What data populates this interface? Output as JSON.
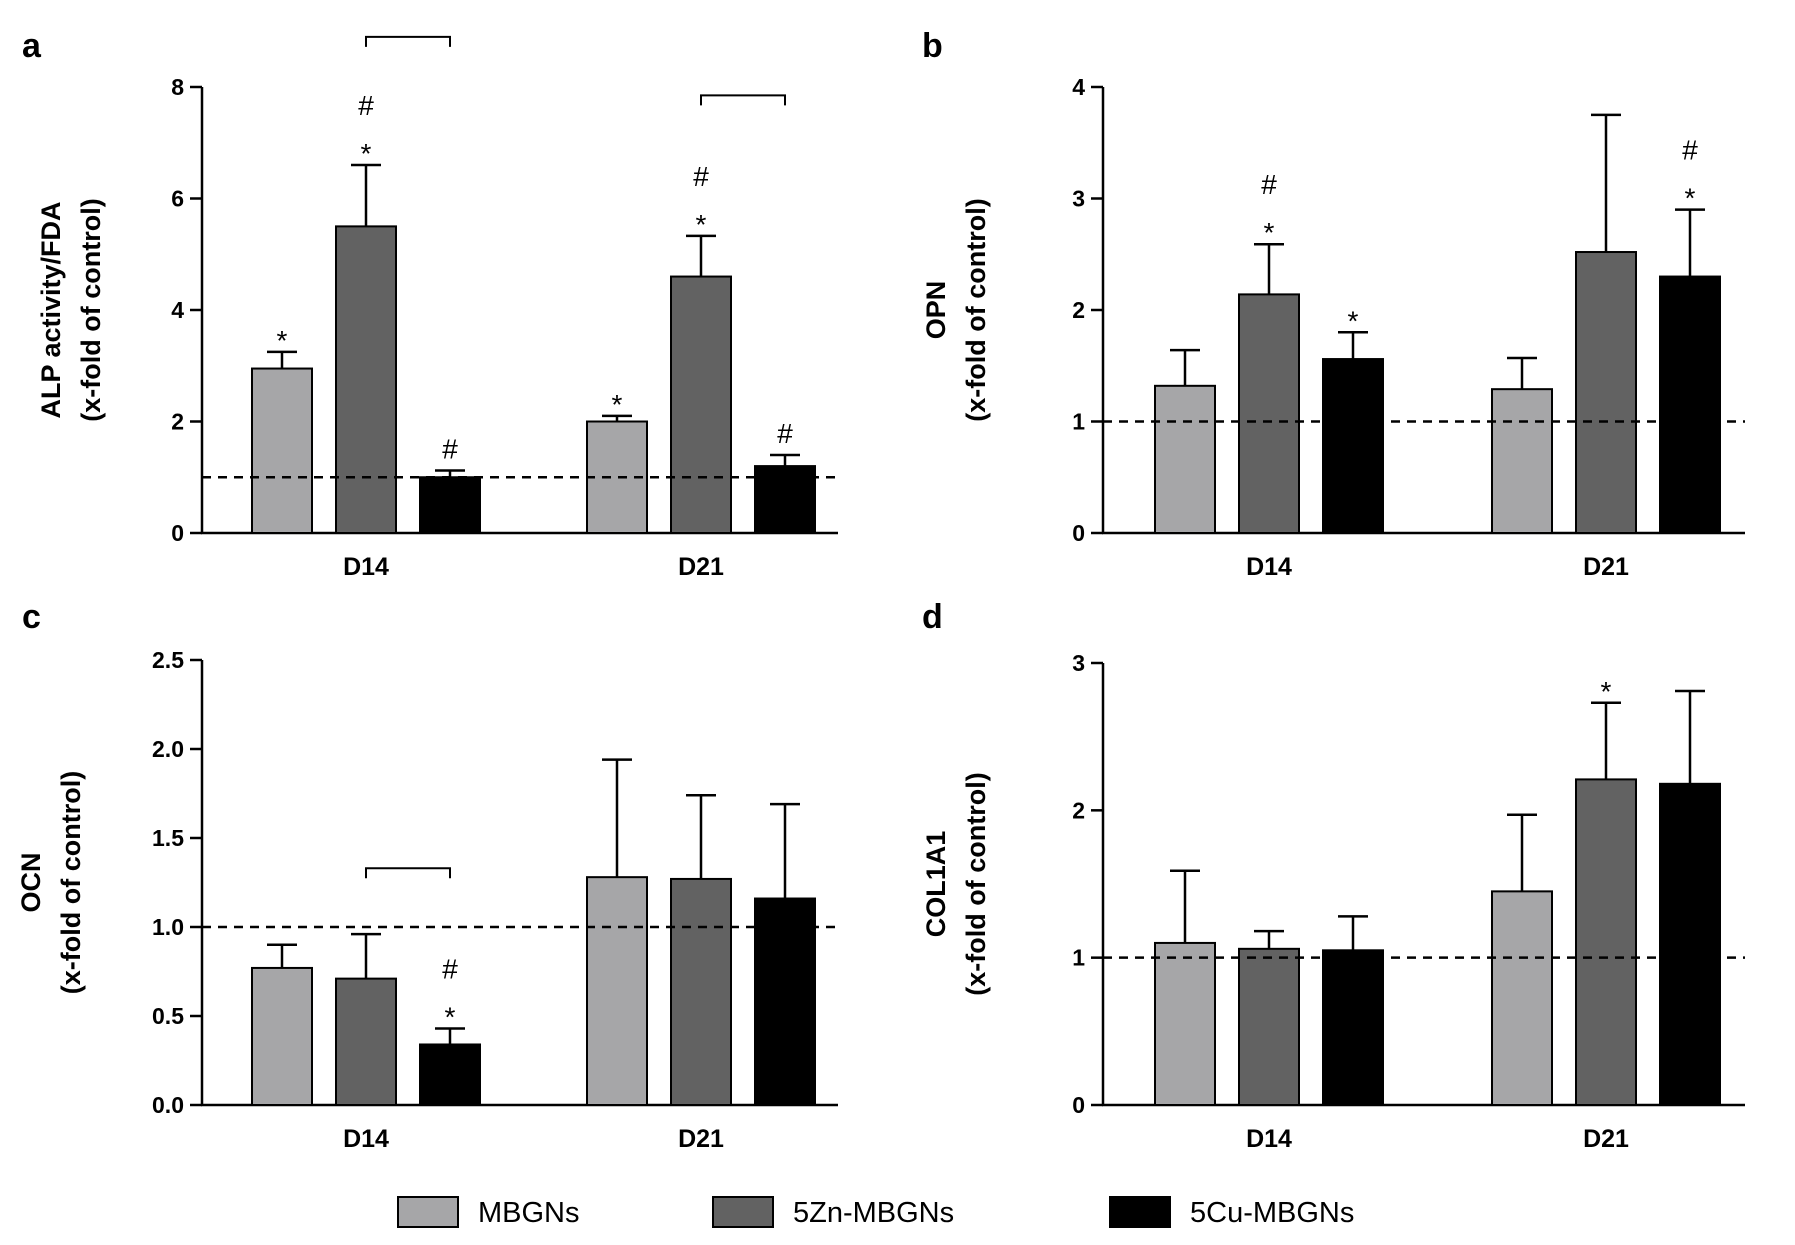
{
  "series_names": [
    "MBGNs",
    "5Zn-MBGNs",
    "5Cu-MBGNs"
  ],
  "colors": {
    "MBGNs": "#a6a6a8",
    "5Zn-MBGNs": "#626262",
    "5Cu-MBGNs": "#000000"
  },
  "chart_data": [
    {
      "type": "bar",
      "panel": "a",
      "ylabel": [
        "ALP activity/FDA",
        "(x-fold of control)"
      ],
      "categories": [
        "D14",
        "D21"
      ],
      "ylim": [
        0,
        8
      ],
      "yticks": [
        "0",
        "2",
        "4",
        "6",
        "8"
      ],
      "reference_line": 1.0,
      "series": [
        {
          "name": "MBGNs",
          "values": [
            2.95,
            2.0
          ],
          "errors": [
            0.3,
            0.1
          ]
        },
        {
          "name": "5Zn-MBGNs",
          "values": [
            5.5,
            4.6
          ],
          "errors": [
            1.1,
            0.73
          ]
        },
        {
          "name": "5Cu-MBGNs",
          "values": [
            1.0,
            1.2
          ],
          "errors": [
            0.12,
            0.2
          ]
        }
      ],
      "significance": [
        {
          "category": 0,
          "series": 0,
          "labels": [
            "*"
          ]
        },
        {
          "category": 0,
          "series": 1,
          "labels": [
            "#",
            "*"
          ]
        },
        {
          "category": 0,
          "series": 2,
          "labels": [
            "#"
          ]
        },
        {
          "category": 1,
          "series": 0,
          "labels": [
            "*"
          ]
        },
        {
          "category": 1,
          "series": 1,
          "labels": [
            "#",
            "*"
          ]
        },
        {
          "category": 1,
          "series": 2,
          "labels": [
            "#"
          ]
        }
      ],
      "brackets": [
        {
          "category": 0,
          "from_series": 1,
          "to_series": 2,
          "level": 8.9
        },
        {
          "category": 1,
          "from_series": 1,
          "to_series": 2,
          "level": 7.85
        }
      ]
    },
    {
      "type": "bar",
      "panel": "b",
      "ylabel": [
        "OPN",
        "(x-fold of control)"
      ],
      "categories": [
        "D14",
        "D21"
      ],
      "ylim": [
        0,
        4
      ],
      "yticks": [
        "0",
        "1",
        "2",
        "3",
        "4"
      ],
      "reference_line": 1.0,
      "series": [
        {
          "name": "MBGNs",
          "values": [
            1.32,
            1.29
          ],
          "errors": [
            0.32,
            0.28
          ]
        },
        {
          "name": "5Zn-MBGNs",
          "values": [
            2.14,
            2.52
          ],
          "errors": [
            0.45,
            1.23
          ]
        },
        {
          "name": "5Cu-MBGNs",
          "values": [
            1.56,
            2.3
          ],
          "errors": [
            0.24,
            0.6
          ]
        }
      ],
      "significance": [
        {
          "category": 0,
          "series": 1,
          "labels": [
            "#",
            "*"
          ]
        },
        {
          "category": 0,
          "series": 2,
          "labels": [
            "*"
          ]
        },
        {
          "category": 1,
          "series": 2,
          "labels": [
            "#",
            "*"
          ]
        }
      ],
      "brackets": []
    },
    {
      "type": "bar",
      "panel": "c",
      "ylabel": [
        "OCN",
        "(x-fold of control)"
      ],
      "categories": [
        "D14",
        "D21"
      ],
      "ylim": [
        0,
        2.5
      ],
      "yticks": [
        "0.0",
        "0.5",
        "1.0",
        "1.5",
        "2.0",
        "2.5"
      ],
      "reference_line": 1.0,
      "series": [
        {
          "name": "MBGNs",
          "values": [
            0.77,
            1.28
          ],
          "errors": [
            0.13,
            0.66
          ]
        },
        {
          "name": "5Zn-MBGNs",
          "values": [
            0.71,
            1.27
          ],
          "errors": [
            0.25,
            0.47
          ]
        },
        {
          "name": "5Cu-MBGNs",
          "values": [
            0.34,
            1.16
          ],
          "errors": [
            0.09,
            0.53
          ]
        }
      ],
      "significance": [
        {
          "category": 0,
          "series": 2,
          "labels": [
            "#",
            "*"
          ]
        }
      ],
      "brackets": [
        {
          "category": 0,
          "from_series": 1,
          "to_series": 2,
          "level": 1.33
        }
      ]
    },
    {
      "type": "bar",
      "panel": "d",
      "ylabel": [
        "COL1A1",
        "(x-fold of control)"
      ],
      "categories": [
        "D14",
        "D21"
      ],
      "ylim": [
        0,
        3
      ],
      "yticks": [
        "0",
        "1",
        "2",
        "3"
      ],
      "reference_line": 1.0,
      "series": [
        {
          "name": "MBGNs",
          "values": [
            1.1,
            1.45
          ],
          "errors": [
            0.49,
            0.52
          ]
        },
        {
          "name": "5Zn-MBGNs",
          "values": [
            1.06,
            2.21
          ],
          "errors": [
            0.12,
            0.52
          ]
        },
        {
          "name": "5Cu-MBGNs",
          "values": [
            1.05,
            2.18
          ],
          "errors": [
            0.23,
            0.63
          ]
        }
      ],
      "significance": [
        {
          "category": 1,
          "series": 1,
          "labels": [
            "*"
          ]
        }
      ],
      "brackets": []
    }
  ]
}
